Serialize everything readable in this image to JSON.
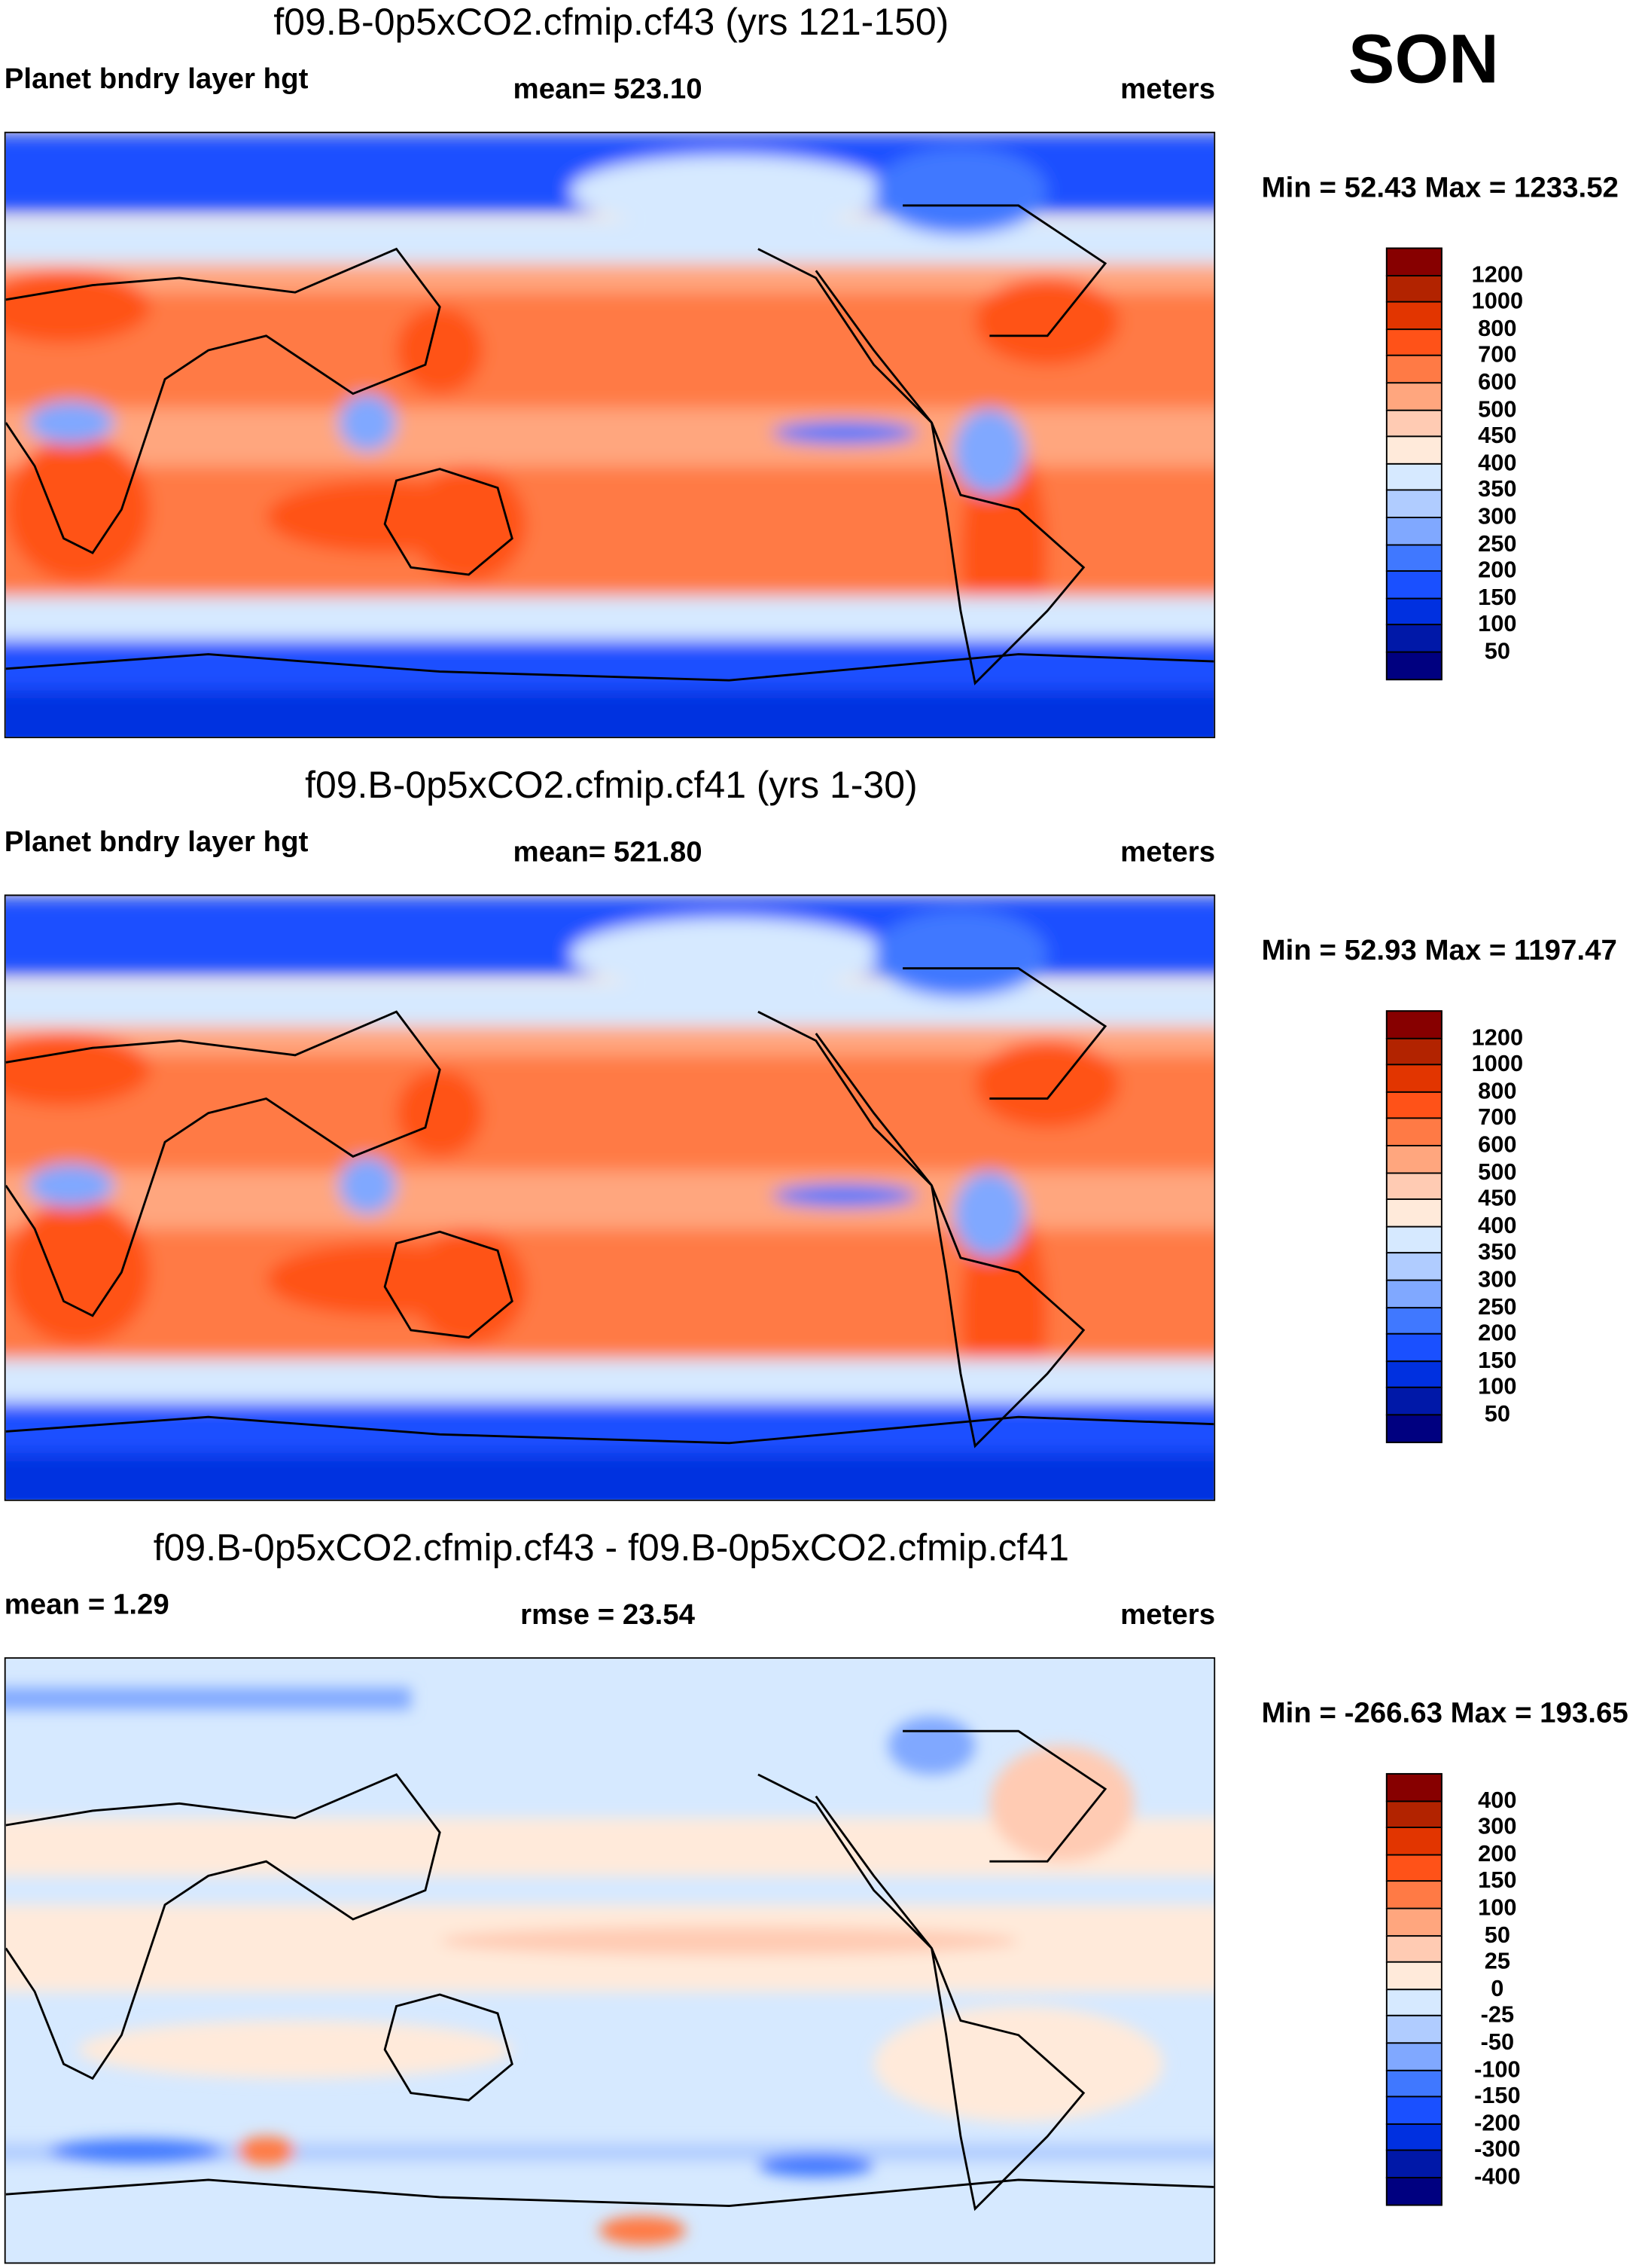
{
  "season": "SON",
  "colors": [
    "#870000",
    "#b22300",
    "#e23500",
    "#ff5218",
    "#ff7a45",
    "#ffa67e",
    "#ffcbb3",
    "#ffeada",
    "#d6e9ff",
    "#b0ccff",
    "#80a8ff",
    "#4078ff",
    "#1a50ff",
    "#0030e0",
    "#0018a8",
    "#000080"
  ],
  "chart_data": [
    {
      "type": "heatmap",
      "title": "f09.B-0p5xCO2.cfmip.cf43 (yrs 121-150)",
      "left_label": "Planet bndry layer hgt",
      "center_label": "mean= 523.10",
      "right_label": "meters",
      "minmax": "Min =  52.43 Max = 1233.52",
      "levels": [
        "1200",
        "1000",
        "800",
        "700",
        "600",
        "500",
        "450",
        "400",
        "350",
        "300",
        "250",
        "200",
        "150",
        "100",
        "50"
      ]
    },
    {
      "type": "heatmap",
      "title": "f09.B-0p5xCO2.cfmip.cf41 (yrs 1-30)",
      "left_label": "Planet bndry layer hgt",
      "center_label": "mean= 521.80",
      "right_label": "meters",
      "minmax": "Min =  52.93 Max = 1197.47",
      "levels": [
        "1200",
        "1000",
        "800",
        "700",
        "600",
        "500",
        "450",
        "400",
        "350",
        "300",
        "250",
        "200",
        "150",
        "100",
        "50"
      ]
    },
    {
      "type": "heatmap",
      "title": "f09.B-0p5xCO2.cfmip.cf43 - f09.B-0p5xCO2.cfmip.cf41",
      "left_label": "mean =   1.29",
      "center_label": "rmse =  23.54",
      "right_label": "meters",
      "minmax": "Min = -266.63 Max = 193.65",
      "levels": [
        "400",
        "300",
        "200",
        "150",
        "100",
        "50",
        "25",
        "0",
        "-25",
        "-50",
        "-100",
        "-150",
        "-200",
        "-300",
        "-400"
      ]
    }
  ]
}
